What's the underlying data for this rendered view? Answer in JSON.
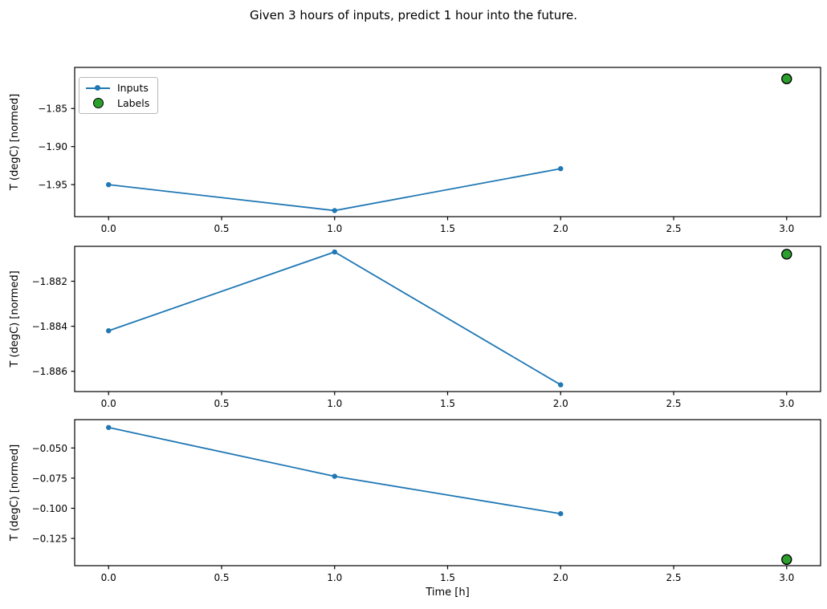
{
  "figure": {
    "title": "Given 3 hours of inputs, predict 1 hour into the future.",
    "background": "#ffffff"
  },
  "colors": {
    "inputs_line": "#1f77b4",
    "labels_fill": "#2ca02c",
    "labels_edge": "#000000",
    "axis": "#000000",
    "text": "#000000"
  },
  "legend": {
    "items": [
      {
        "label": "Inputs",
        "marker": "line-with-dot",
        "color": "#1f77b4"
      },
      {
        "label": "Labels",
        "marker": "filled-circle",
        "color": "#2ca02c"
      }
    ]
  },
  "xlabel": "Time [h]",
  "chart_data": [
    {
      "type": "line",
      "title": "",
      "ylabel": "T (degC) [normed]",
      "xlabel": "",
      "series": [
        {
          "name": "Inputs",
          "style": "line+marker",
          "x": [
            0,
            1,
            2
          ],
          "y": [
            -1.95,
            -1.984,
            -1.929
          ]
        },
        {
          "name": "Labels",
          "style": "scatter",
          "x": [
            3
          ],
          "y": [
            -1.811
          ]
        }
      ],
      "xlim": [
        -0.15,
        3.15
      ],
      "ylim": [
        -1.992,
        -1.796
      ],
      "xticks": {
        "values": [
          0,
          0.5,
          1,
          1.5,
          2,
          2.5,
          3
        ],
        "labels": [
          "0.0",
          "0.5",
          "1.0",
          "1.5",
          "2.0",
          "2.5",
          "3.0"
        ]
      },
      "yticks": {
        "values": [
          -1.85,
          -1.9,
          -1.95
        ],
        "labels": [
          "−1.85",
          "−1.90",
          "−1.95"
        ]
      },
      "grid": false,
      "legend_position": "upper-left"
    },
    {
      "type": "line",
      "title": "",
      "ylabel": "T (degC) [normed]",
      "xlabel": "",
      "series": [
        {
          "name": "Inputs",
          "style": "line+marker",
          "x": [
            0,
            1,
            2
          ],
          "y": [
            -1.8842,
            -1.8807,
            -1.8866
          ]
        },
        {
          "name": "Labels",
          "style": "scatter",
          "x": [
            3
          ],
          "y": [
            -1.8808
          ]
        }
      ],
      "xlim": [
        -0.15,
        3.15
      ],
      "ylim": [
        -1.8869,
        -1.88045
      ],
      "xticks": {
        "values": [
          0,
          0.5,
          1,
          1.5,
          2,
          2.5,
          3
        ],
        "labels": [
          "0.0",
          "0.5",
          "1.0",
          "1.5",
          "2.0",
          "2.5",
          "3.0"
        ]
      },
      "yticks": {
        "values": [
          -1.882,
          -1.884,
          -1.886
        ],
        "labels": [
          "−1.882",
          "−1.884",
          "−1.886"
        ]
      },
      "grid": false,
      "legend_position": "none"
    },
    {
      "type": "line",
      "title": "",
      "ylabel": "T (degC) [normed]",
      "xlabel": "Time [h]",
      "series": [
        {
          "name": "Inputs",
          "style": "line+marker",
          "x": [
            0,
            1,
            2
          ],
          "y": [
            -0.033,
            -0.0735,
            -0.1045
          ]
        },
        {
          "name": "Labels",
          "style": "scatter",
          "x": [
            3
          ],
          "y": [
            -0.1425
          ]
        }
      ],
      "xlim": [
        -0.15,
        3.15
      ],
      "ylim": [
        -0.1476,
        -0.0265
      ],
      "xticks": {
        "values": [
          0,
          0.5,
          1,
          1.5,
          2,
          2.5,
          3
        ],
        "labels": [
          "0.0",
          "0.5",
          "1.0",
          "1.5",
          "2.0",
          "2.5",
          "3.0"
        ]
      },
      "yticks": {
        "values": [
          -0.05,
          -0.075,
          -0.1,
          -0.125
        ],
        "labels": [
          "−0.050",
          "−0.075",
          "−0.100",
          "−0.125"
        ]
      },
      "grid": false,
      "legend_position": "none"
    }
  ]
}
